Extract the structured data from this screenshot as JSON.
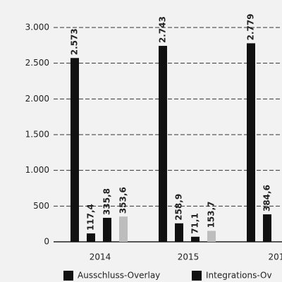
{
  "chart_data": {
    "type": "bar",
    "categories": [
      "2014",
      "2015",
      "201"
    ],
    "series": [
      {
        "name": "Ausschluss-Overlay",
        "color": "#111111",
        "values": [
          2573,
          2743,
          2779
        ],
        "value_labels": [
          "2.573",
          "2.743",
          "2.779"
        ]
      },
      {
        "name": "Integrations-Ov",
        "color": "#111111",
        "values": [
          117.4,
          258.9,
          384.6
        ],
        "value_labels": [
          "117,4",
          "258,9",
          "384,6"
        ]
      },
      {
        "color": "#111111",
        "values": [
          335.8,
          71.1,
          null
        ],
        "value_labels": [
          "335,8",
          "71,1",
          null
        ]
      },
      {
        "color": "#bdbdbd",
        "values": [
          353.6,
          153.7,
          null
        ],
        "value_labels": [
          "353,6",
          "153,7",
          null
        ]
      }
    ],
    "ylim": [
      0,
      3000
    ],
    "yticks": [
      0,
      500,
      {
        "value": 1000,
        "label": "1.000"
      },
      {
        "value": 1500,
        "label": "1.500"
      },
      {
        "value": 2000,
        "label": "2.000"
      },
      {
        "value": 2500,
        "label": "2.500"
      },
      {
        "value": 3000,
        "label": "3.000"
      }
    ],
    "grid": true
  }
}
